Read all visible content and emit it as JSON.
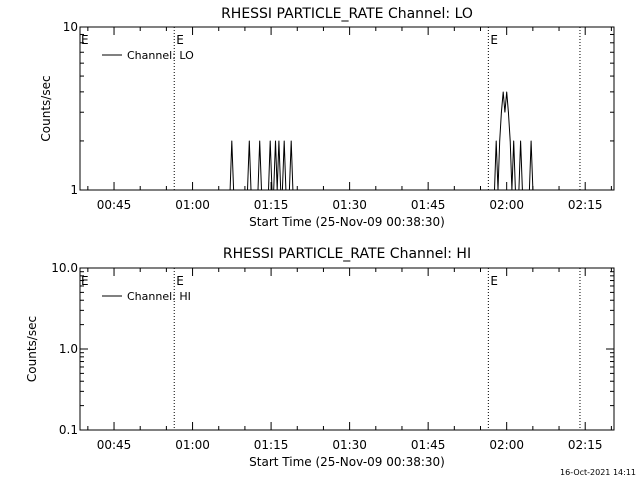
{
  "chart_data": [
    {
      "type": "line",
      "title": "RHESSI PARTICLE_RATE Channel: LO",
      "xlabel": "Start Time (25-Nov-09 00:38:30)",
      "ylabel": "Counts/sec",
      "y_scale": "log",
      "ylim": [
        1,
        10
      ],
      "y_ticks": [
        "1",
        "10"
      ],
      "x_ticks": [
        "00:45",
        "01:00",
        "01:15",
        "01:30",
        "01:45",
        "02:00",
        "02:15"
      ],
      "xlim": [
        "00:38:30",
        "02:20:30"
      ],
      "legend": {
        "label": "Channel: LO",
        "placement": "top-left"
      },
      "markers": [
        {
          "time": "00:56:30",
          "label": "E"
        },
        {
          "time": "01:56:30",
          "label": "E"
        },
        {
          "time": "02:14:00",
          "label": ""
        }
      ],
      "series": [
        {
          "name": "Channel: LO",
          "points": [
            [
              "01:07:10",
              1
            ],
            [
              "01:07:30",
              2
            ],
            [
              "01:07:50",
              1
            ],
            [
              "01:10:30",
              1
            ],
            [
              "01:10:50",
              2
            ],
            [
              "01:11:10",
              1
            ],
            [
              "01:12:30",
              1
            ],
            [
              "01:12:50",
              2
            ],
            [
              "01:13:10",
              1
            ],
            [
              "01:14:30",
              1
            ],
            [
              "01:14:50",
              2
            ],
            [
              "01:15:10",
              1
            ],
            [
              "01:15:30",
              1
            ],
            [
              "01:15:50",
              2
            ],
            [
              "01:16:10",
              1
            ],
            [
              "01:16:30",
              2
            ],
            [
              "01:16:50",
              1
            ],
            [
              "01:17:10",
              1
            ],
            [
              "01:17:30",
              2
            ],
            [
              "01:17:50",
              1
            ],
            [
              "01:18:30",
              1
            ],
            [
              "01:18:50",
              2
            ],
            [
              "01:19:10",
              1
            ],
            [
              "01:57:40",
              1
            ],
            [
              "01:58:00",
              2
            ],
            [
              "01:58:20",
              1
            ],
            [
              "01:58:40",
              2
            ],
            [
              "01:59:00",
              3
            ],
            [
              "01:59:20",
              4
            ],
            [
              "01:59:40",
              3
            ],
            [
              "02:00:00",
              4
            ],
            [
              "02:00:20",
              3
            ],
            [
              "02:00:40",
              2
            ],
            [
              "02:01:00",
              1
            ],
            [
              "02:01:20",
              2
            ],
            [
              "02:01:40",
              1
            ],
            [
              "02:02:20",
              1
            ],
            [
              "02:02:40",
              2
            ],
            [
              "02:03:00",
              1
            ],
            [
              "02:04:20",
              1
            ],
            [
              "02:04:40",
              2
            ],
            [
              "02:05:00",
              1
            ]
          ]
        }
      ]
    },
    {
      "type": "line",
      "title": "RHESSI PARTICLE_RATE Channel: HI",
      "xlabel": "Start Time (25-Nov-09 00:38:30)",
      "ylabel": "Counts/sec",
      "y_scale": "log",
      "ylim": [
        0.1,
        10
      ],
      "y_ticks": [
        "0.1",
        "1.0",
        "10.0"
      ],
      "x_ticks": [
        "00:45",
        "01:00",
        "01:15",
        "01:30",
        "01:45",
        "02:00",
        "02:15"
      ],
      "xlim": [
        "00:38:30",
        "02:20:30"
      ],
      "legend": {
        "label": "Channel: HI",
        "placement": "top-left"
      },
      "markers": [
        {
          "time": "00:56:30",
          "label": "E"
        },
        {
          "time": "01:56:30",
          "label": "E"
        },
        {
          "time": "02:14:00",
          "label": ""
        }
      ],
      "series": [
        {
          "name": "Channel: HI",
          "points": []
        }
      ]
    }
  ],
  "footer": {
    "timestamp": "16-Oct-2021 14:11"
  }
}
